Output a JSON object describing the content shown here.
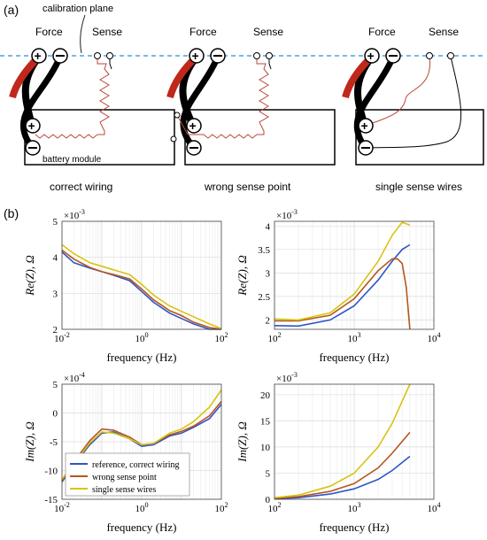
{
  "panel_a": {
    "label": "(a)",
    "calibration_plane": "calibration plane",
    "force": "Force",
    "sense": "Sense",
    "battery_module": "battery module",
    "captions": [
      "correct wiring",
      "wrong sense point",
      "single sense wires"
    ]
  },
  "panel_b": {
    "label": "(b)"
  },
  "colors": {
    "reference": "#2f55c6",
    "wrong": "#b5561d",
    "single": "#d7c40f",
    "cable_red": "#c0281b",
    "calibration_line": "#2a8fd8",
    "zigzag": "#b74a39"
  },
  "chart_data": [
    {
      "type": "line",
      "xlabel": "frequency (Hz)",
      "ylabel": "Re(Z), Ω",
      "xscale": "log",
      "xlim": [
        0.01,
        100
      ],
      "ylim": [
        2,
        5
      ],
      "y_exponent": "×10^-3",
      "yticks": [
        "2",
        "3",
        "4",
        "5"
      ],
      "xticks": [
        "10^-2",
        "10^0",
        "10^2"
      ],
      "grid": true,
      "series": [
        {
          "color_key": "reference",
          "x": [
            0.01,
            0.02,
            0.05,
            0.1,
            0.2,
            0.5,
            1,
            2,
            5,
            10,
            20,
            50,
            100
          ],
          "y": [
            4.15,
            3.85,
            3.7,
            3.6,
            3.5,
            3.35,
            3.05,
            2.75,
            2.45,
            2.3,
            2.15,
            2.0,
            1.95
          ]
        },
        {
          "color_key": "wrong",
          "x": [
            0.01,
            0.02,
            0.05,
            0.1,
            0.2,
            0.5,
            1,
            2,
            5,
            10,
            20,
            50,
            100
          ],
          "y": [
            4.2,
            3.95,
            3.72,
            3.6,
            3.52,
            3.4,
            3.12,
            2.82,
            2.52,
            2.38,
            2.2,
            2.05,
            1.98
          ]
        },
        {
          "color_key": "single",
          "x": [
            0.01,
            0.02,
            0.05,
            0.1,
            0.2,
            0.5,
            1,
            2,
            5,
            10,
            20,
            50,
            100
          ],
          "y": [
            4.35,
            4.1,
            3.85,
            3.75,
            3.65,
            3.52,
            3.25,
            2.95,
            2.65,
            2.5,
            2.35,
            2.15,
            2.02
          ]
        }
      ]
    },
    {
      "type": "line",
      "xlabel": "frequency (Hz)",
      "ylabel": "Re(Z), Ω",
      "xscale": "log",
      "xlim": [
        100,
        10000
      ],
      "ylim": [
        1.8,
        4.1
      ],
      "y_exponent": "×10^-3",
      "yticks": [
        "2",
        "2.5",
        "3",
        "3.5",
        "4"
      ],
      "xticks": [
        "10^2",
        "10^3",
        "10^4"
      ],
      "grid": true,
      "series": [
        {
          "color_key": "reference",
          "x": [
            100,
            200,
            500,
            1000,
            2000,
            3000,
            4000,
            5000
          ],
          "y": [
            1.88,
            1.87,
            2.0,
            2.3,
            2.85,
            3.25,
            3.5,
            3.6
          ]
        },
        {
          "color_key": "wrong",
          "x": [
            100,
            200,
            500,
            1000,
            2000,
            3000,
            3500,
            4000,
            4500,
            5000
          ],
          "y": [
            1.98,
            1.98,
            2.1,
            2.45,
            3.05,
            3.3,
            3.3,
            3.2,
            2.7,
            1.8
          ]
        },
        {
          "color_key": "single",
          "x": [
            100,
            200,
            500,
            1000,
            2000,
            3000,
            4000,
            5000
          ],
          "y": [
            2.02,
            2.0,
            2.15,
            2.55,
            3.25,
            3.8,
            4.08,
            4.02
          ]
        }
      ]
    },
    {
      "type": "line",
      "xlabel": "frequency (Hz)",
      "ylabel": "Im(Z), Ω",
      "xscale": "log",
      "xlim": [
        0.01,
        100
      ],
      "ylim": [
        -15,
        5
      ],
      "y_exponent": "×10^-4",
      "yticks": [
        "-15",
        "-10",
        "-5",
        "0",
        "5"
      ],
      "xticks": [
        "10^-2",
        "10^0",
        "10^2"
      ],
      "grid": true,
      "legend": {
        "placement": "bottom-left",
        "entries": [
          "reference, correct wiring",
          "wrong sense point",
          "single sense wires"
        ]
      },
      "series": [
        {
          "name": "reference, correct wiring",
          "color_key": "reference",
          "x": [
            0.01,
            0.02,
            0.05,
            0.1,
            0.2,
            0.5,
            1,
            2,
            5,
            10,
            20,
            50,
            100
          ],
          "y": [
            -12.0,
            -9.0,
            -5.5,
            -3.5,
            -3.3,
            -4.5,
            -5.8,
            -5.5,
            -4.0,
            -3.5,
            -2.5,
            -1.0,
            1.5
          ]
        },
        {
          "name": "wrong sense point",
          "color_key": "wrong",
          "x": [
            0.01,
            0.02,
            0.05,
            0.1,
            0.2,
            0.5,
            1,
            2,
            5,
            10,
            20,
            50,
            100
          ],
          "y": [
            -11.8,
            -8.5,
            -4.8,
            -2.8,
            -3.0,
            -4.2,
            -5.5,
            -5.3,
            -3.8,
            -3.2,
            -2.3,
            -0.5,
            2.0
          ]
        },
        {
          "name": "single sense wires",
          "color_key": "single",
          "x": [
            0.01,
            0.02,
            0.05,
            0.1,
            0.2,
            0.5,
            1,
            2,
            5,
            10,
            20,
            50,
            100
          ],
          "y": [
            -11.5,
            -8.8,
            -5.2,
            -3.3,
            -3.5,
            -4.5,
            -5.5,
            -5.3,
            -3.5,
            -2.8,
            -1.5,
            1.0,
            4.0
          ]
        }
      ]
    },
    {
      "type": "line",
      "xlabel": "frequency (Hz)",
      "ylabel": "Im(Z), Ω",
      "xscale": "log",
      "xlim": [
        100,
        10000
      ],
      "ylim": [
        0,
        22
      ],
      "y_exponent": "×10^-3",
      "yticks": [
        "0",
        "5",
        "10",
        "15",
        "20"
      ],
      "xticks": [
        "10^2",
        "10^3",
        "10^4"
      ],
      "grid": true,
      "series": [
        {
          "color_key": "reference",
          "x": [
            100,
            200,
            500,
            1000,
            2000,
            3000,
            5000
          ],
          "y": [
            0.1,
            0.3,
            1.0,
            2.0,
            3.8,
            5.5,
            8.2
          ]
        },
        {
          "color_key": "wrong",
          "x": [
            100,
            200,
            500,
            1000,
            2000,
            3000,
            5000
          ],
          "y": [
            0.2,
            0.5,
            1.5,
            3.0,
            6.0,
            8.8,
            12.8
          ]
        },
        {
          "color_key": "single",
          "x": [
            100,
            200,
            500,
            1000,
            2000,
            3000,
            5000
          ],
          "y": [
            0.3,
            0.8,
            2.5,
            5.0,
            10.0,
            14.5,
            22
          ]
        }
      ]
    }
  ]
}
